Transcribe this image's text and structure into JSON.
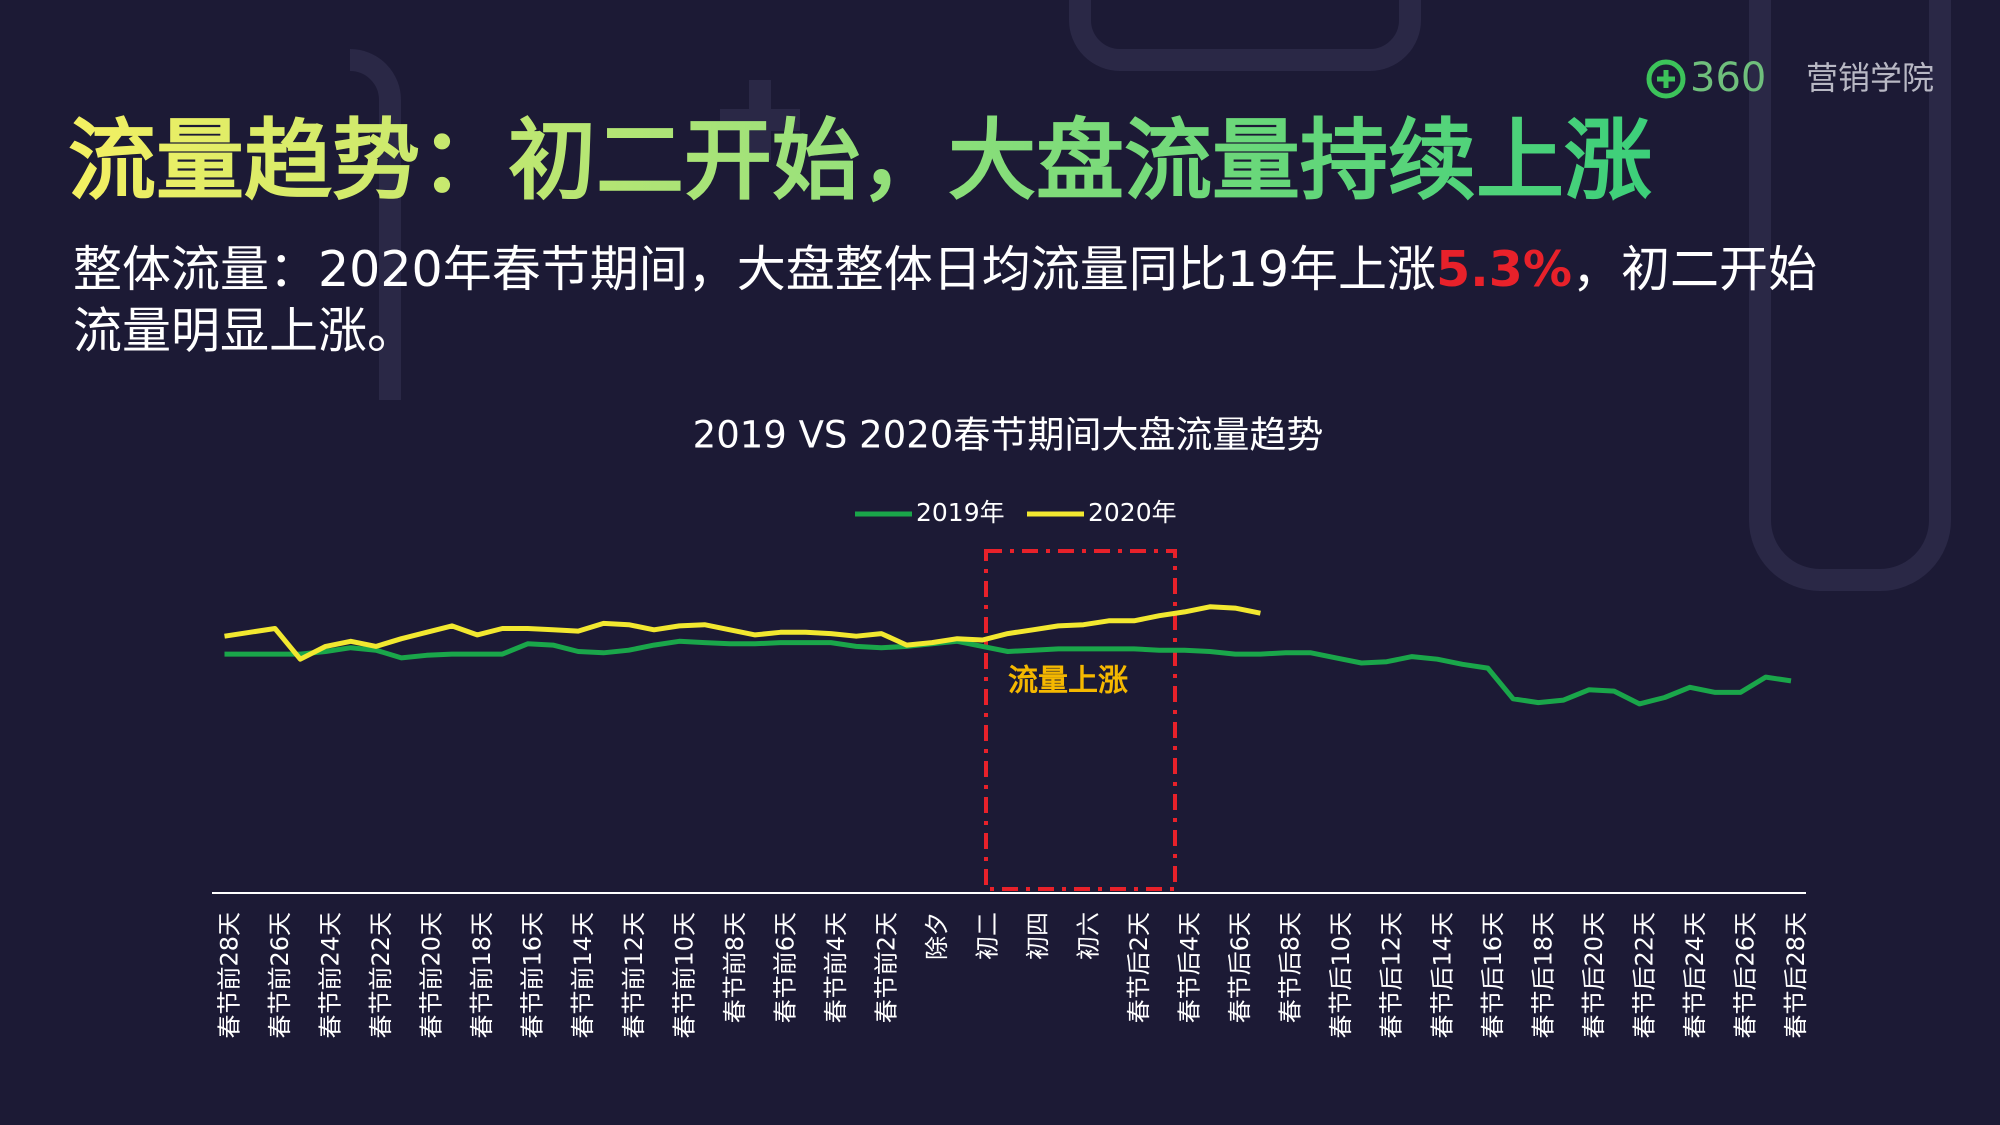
{
  "header": {
    "logo": {
      "brand": "360",
      "name": "营销学院"
    },
    "title": "流量趋势：初二开始，大盘流量持续上涨",
    "subtitle": {
      "before": "整体流量：2020年春节期间，大盘整体日均流量同比19年上涨",
      "highlight": "5.3%",
      "after": "，初二开始",
      "line2": "流量明显上涨。"
    }
  },
  "chart_data": {
    "type": "line",
    "title": "2019 VS 2020春节期间大盘流量趋势",
    "annotation": "流量上涨",
    "categories": [
      "春节前28天",
      null,
      "春节前26天",
      null,
      "春节前24天",
      null,
      "春节前22天",
      null,
      "春节前20天",
      null,
      "春节前18天",
      null,
      "春节前16天",
      null,
      "春节前14天",
      null,
      "春节前12天",
      null,
      "春节前10天",
      null,
      "春节前8天",
      null,
      "春节前6天",
      null,
      "春节前4天",
      null,
      "春节前2天",
      null,
      "除夕",
      null,
      "初二",
      null,
      "初四",
      null,
      "初六",
      null,
      "春节后2天",
      null,
      "春节后4天",
      null,
      "春节后6天",
      null,
      "春节后8天",
      null,
      "春节后10天",
      null,
      "春节后12天",
      null,
      "春节后14天",
      null,
      "春节后16天",
      null,
      "春节后18天",
      null,
      "春节后20天",
      null,
      "春节后22天",
      null,
      "春节后24天",
      null,
      "春节后26天",
      null,
      "春节后28天"
    ],
    "series": [
      {
        "name": "2019年",
        "color": "#1aa64a",
        "values": [
          187,
          187,
          187,
          187,
          189,
          192,
          190,
          184,
          186,
          187,
          187,
          187,
          195,
          194,
          189,
          188,
          190,
          194,
          197,
          196,
          195,
          195,
          196,
          196,
          196,
          193,
          192,
          193,
          195,
          197,
          193,
          189,
          190,
          191,
          191,
          191,
          191,
          190,
          190,
          189,
          187,
          187,
          188,
          188,
          184,
          180,
          181,
          185,
          183,
          179,
          176,
          152,
          149,
          151,
          159,
          158,
          148,
          153,
          161,
          157,
          157,
          169,
          166
        ]
      },
      {
        "name": "2020年",
        "color": "#f2e830",
        "values": [
          201,
          204,
          207,
          183,
          193,
          197,
          193,
          199,
          204,
          209,
          202,
          207,
          207,
          206,
          205,
          211,
          210,
          206,
          209,
          210,
          206,
          202,
          204,
          204,
          203,
          201,
          203,
          194,
          196,
          199,
          198,
          203,
          206,
          209,
          210,
          213,
          213,
          217,
          220,
          224,
          223,
          219,
          null,
          null,
          null,
          null,
          null,
          null,
          null,
          null,
          null,
          null,
          null,
          null,
          null,
          null,
          null,
          null,
          null,
          null,
          null,
          null,
          null
        ]
      }
    ],
    "ylim": [
      0,
      270
    ],
    "legend": "top"
  }
}
